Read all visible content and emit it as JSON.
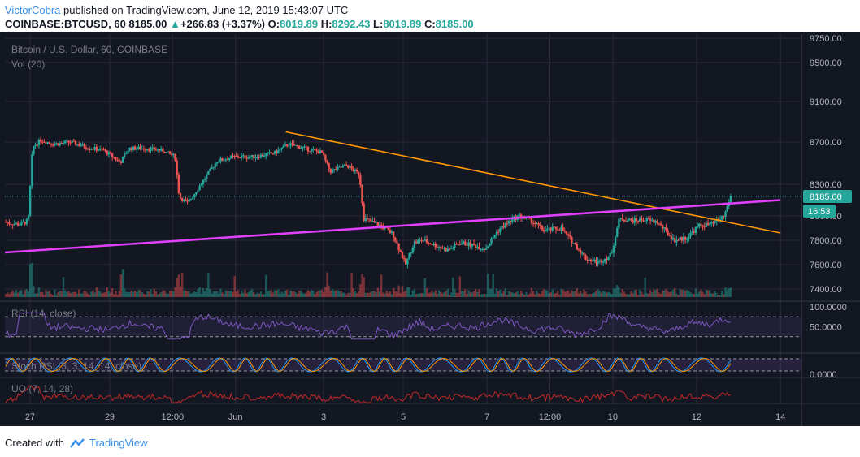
{
  "header": {
    "author": "VictorCobra",
    "published_text": "published on TradingView.com, June 12, 2019 15:43:07 UTC",
    "symbol": "COINBASE:BTCUSD, 60",
    "last": "8185.00",
    "change_arrow": "▲",
    "change": "+266.83 (+3.37%)",
    "o_label": "O:",
    "o_value": "8019.89",
    "h_label": "H:",
    "h_value": "8292.43",
    "l_label": "L:",
    "l_value": "8019.89",
    "c_label": "C:",
    "c_value": "8185.00"
  },
  "footer": {
    "created_with": "Created with",
    "brand": "TradingView",
    "logo_icon": "tradingview-logo-icon"
  },
  "colors": {
    "background": "#131722",
    "grid": "#2a2a3a",
    "up": "#26a69a",
    "down": "#ef5350",
    "trendline_orange": "#ff9800",
    "trendline_magenta": "#e040fb",
    "rsi": "#7e57c2",
    "stoch_k": "#2196f3",
    "stoch_d": "#ff9800",
    "uo": "#c62828",
    "price_label_bg": "#26a69a"
  },
  "chart_data": {
    "type": "candlestick",
    "title": "Bitcoin / U.S. Dollar, 60, COINBASE",
    "volume_label": "Vol (20)",
    "price_axis_ticks": [
      "9750.00",
      "9500.00",
      "9100.00",
      "8700.00",
      "8300.00",
      "8000.00",
      "7800.00",
      "7600.00",
      "7400.00"
    ],
    "price_axis_values": [
      9750,
      9500,
      9100,
      8700,
      8300,
      8000,
      7800,
      7600,
      7400
    ],
    "x_axis_ticks": [
      "27",
      "29",
      "12:00",
      "Jun",
      "3",
      "5",
      "7",
      "12:00",
      "10",
      "12",
      "14"
    ],
    "x_axis_positions_time": [
      0.6,
      2.5,
      4.0,
      5.5,
      7.6,
      9.5,
      11.5,
      13.0,
      14.5,
      16.5,
      18.5
    ],
    "last_price": 8185.0,
    "last_price_label": "8185.00",
    "countdown_label": "16:53",
    "price_path_days_vs_price": [
      [
        0.0,
        7950
      ],
      [
        0.4,
        7930
      ],
      [
        0.6,
        7960
      ],
      [
        0.7,
        8650
      ],
      [
        0.9,
        8720
      ],
      [
        1.2,
        8680
      ],
      [
        1.6,
        8700
      ],
      [
        2.0,
        8650
      ],
      [
        2.4,
        8620
      ],
      [
        2.8,
        8510
      ],
      [
        3.0,
        8640
      ],
      [
        3.4,
        8640
      ],
      [
        3.8,
        8620
      ],
      [
        4.1,
        8560
      ],
      [
        4.2,
        8180
      ],
      [
        4.4,
        8120
      ],
      [
        4.8,
        8350
      ],
      [
        5.1,
        8520
      ],
      [
        5.5,
        8560
      ],
      [
        6.0,
        8560
      ],
      [
        6.5,
        8600
      ],
      [
        6.8,
        8680
      ],
      [
        7.2,
        8640
      ],
      [
        7.6,
        8600
      ],
      [
        7.8,
        8420
      ],
      [
        8.2,
        8480
      ],
      [
        8.5,
        8390
      ],
      [
        8.6,
        7980
      ],
      [
        9.0,
        7920
      ],
      [
        9.3,
        7850
      ],
      [
        9.6,
        7600
      ],
      [
        9.8,
        7780
      ],
      [
        10.0,
        7800
      ],
      [
        10.3,
        7760
      ],
      [
        10.6,
        7720
      ],
      [
        10.9,
        7780
      ],
      [
        11.2,
        7760
      ],
      [
        11.5,
        7730
      ],
      [
        11.8,
        7880
      ],
      [
        12.1,
        7960
      ],
      [
        12.3,
        8000
      ],
      [
        12.6,
        7960
      ],
      [
        12.9,
        7880
      ],
      [
        13.3,
        7900
      ],
      [
        13.6,
        7780
      ],
      [
        13.9,
        7650
      ],
      [
        14.2,
        7620
      ],
      [
        14.5,
        7680
      ],
      [
        14.7,
        7980
      ],
      [
        15.0,
        7960
      ],
      [
        15.3,
        7970
      ],
      [
        15.6,
        7950
      ],
      [
        16.0,
        7800
      ],
      [
        16.3,
        7820
      ],
      [
        16.6,
        7920
      ],
      [
        16.9,
        7930
      ],
      [
        17.2,
        8000
      ],
      [
        17.35,
        8185
      ]
    ],
    "trendlines": [
      {
        "name": "orange",
        "from": [
          6.7,
          8800
        ],
        "to": [
          18.5,
          7860
        ]
      },
      {
        "name": "magenta",
        "from": [
          0.0,
          7700
        ],
        "to": [
          18.5,
          8150
        ]
      }
    ],
    "indicators": [
      {
        "name": "RSI (14, close)",
        "ticks": [
          "100.0000",
          "50.0000"
        ],
        "levels": [
          70,
          50,
          30
        ],
        "last": 68
      },
      {
        "name": "Stoch RSI (3, 3, 14, 14, close)",
        "ticks": [
          "0.0000"
        ]
      },
      {
        "name": "UO (7, 14, 28)"
      }
    ]
  }
}
